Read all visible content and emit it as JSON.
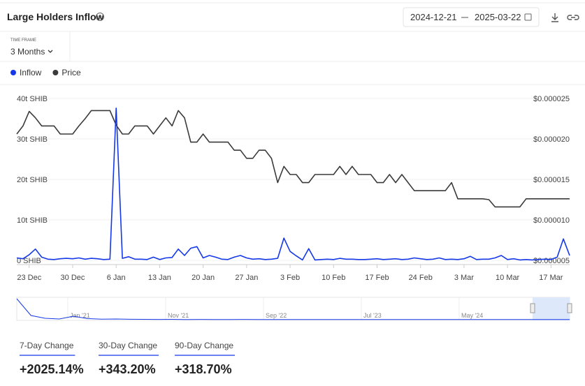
{
  "header": {
    "title": "Large Holders Inflow",
    "date_from": "2024-12-21",
    "date_to": "2025-03-22"
  },
  "time_frame": {
    "label": "TIME FRAME",
    "value": "3 Months"
  },
  "chart_data": {
    "type": "line",
    "x": [
      "21 Dec",
      "22 Dec",
      "23 Dec",
      "24 Dec",
      "25 Dec",
      "26 Dec",
      "27 Dec",
      "28 Dec",
      "29 Dec",
      "30 Dec",
      "31 Dec",
      "1 Jan",
      "2 Jan",
      "3 Jan",
      "4 Jan",
      "5 Jan",
      "6 Jan",
      "7 Jan",
      "8 Jan",
      "9 Jan",
      "10 Jan",
      "11 Jan",
      "12 Jan",
      "13 Jan",
      "14 Jan",
      "15 Jan",
      "16 Jan",
      "17 Jan",
      "18 Jan",
      "19 Jan",
      "20 Jan",
      "21 Jan",
      "22 Jan",
      "23 Jan",
      "24 Jan",
      "25 Jan",
      "26 Jan",
      "27 Jan",
      "28 Jan",
      "29 Jan",
      "30 Jan",
      "31 Jan",
      "1 Feb",
      "2 Feb",
      "3 Feb",
      "4 Feb",
      "5 Feb",
      "6 Feb",
      "7 Feb",
      "8 Feb",
      "9 Feb",
      "10 Feb",
      "11 Feb",
      "12 Feb",
      "13 Feb",
      "14 Feb",
      "15 Feb",
      "16 Feb",
      "17 Feb",
      "18 Feb",
      "19 Feb",
      "20 Feb",
      "21 Feb",
      "22 Feb",
      "23 Feb",
      "24 Feb",
      "25 Feb",
      "26 Feb",
      "27 Feb",
      "28 Feb",
      "1 Mar",
      "2 Mar",
      "3 Mar",
      "4 Mar",
      "5 Mar",
      "6 Mar",
      "7 Mar",
      "8 Mar",
      "9 Mar",
      "10 Mar",
      "11 Mar",
      "12 Mar",
      "13 Mar",
      "14 Mar",
      "15 Mar",
      "16 Mar",
      "17 Mar",
      "18 Mar",
      "19 Mar",
      "20 Mar"
    ],
    "xticks": [
      "23 Dec",
      "30 Dec",
      "6 Jan",
      "13 Jan",
      "20 Jan",
      "27 Jan",
      "3 Feb",
      "10 Feb",
      "17 Feb",
      "24 Feb",
      "3 Mar",
      "10 Mar",
      "17 Mar"
    ],
    "series": [
      {
        "name": "Inflow",
        "color": "#1538e8",
        "values": [
          0.6,
          0.4,
          1.4,
          2.8,
          0.8,
          0.3,
          0.2,
          0.4,
          0.5,
          0.4,
          0.6,
          0.3,
          0.5,
          0.4,
          0.2,
          0.3,
          37.6,
          0.5,
          0.9,
          0.3,
          0.3,
          0.2,
          0.8,
          0.2,
          0.6,
          0.7,
          2.8,
          1.2,
          3.0,
          3.4,
          0.6,
          1.2,
          0.8,
          0.3,
          0.2,
          0.8,
          1.2,
          0.6,
          0.3,
          0.4,
          0.2,
          0.3,
          0.5,
          5.5,
          2.2,
          1.1,
          0.1,
          2.9,
          0.1,
          0.2,
          0.3,
          0.2,
          0.5,
          0.3,
          0.3,
          0.2,
          0.2,
          0.3,
          0.4,
          0.2,
          0.3,
          0.4,
          0.2,
          0.3,
          0.6,
          0.4,
          0.2,
          0.3,
          0.6,
          0.2,
          0.3,
          0.2,
          0.4,
          1.0,
          0.2,
          0.3,
          0.3,
          0.6,
          1.2,
          0.2,
          0.4,
          0.1,
          0.2,
          0.1,
          0.2,
          0.3,
          0.2,
          0.8,
          5.3,
          1.2
        ]
      },
      {
        "name": "Price",
        "color": "#3a3a3a",
        "axis": "y2",
        "values": [
          2.06e-05,
          2.16e-05,
          2.34e-05,
          2.26e-05,
          2.16e-05,
          2.16e-05,
          2.16e-05,
          2.06e-05,
          2.06e-05,
          2.06e-05,
          2.16e-05,
          2.25e-05,
          2.35e-05,
          2.35e-05,
          2.35e-05,
          2.35e-05,
          2.17e-05,
          2.06e-05,
          2.06e-05,
          2.16e-05,
          2.16e-05,
          2.16e-05,
          2.06e-05,
          2.16e-05,
          2.26e-05,
          2.16e-05,
          2.35e-05,
          2.26e-05,
          1.96e-05,
          1.96e-05,
          2.06e-05,
          1.96e-05,
          1.96e-05,
          1.96e-05,
          1.96e-05,
          1.86e-05,
          1.86e-05,
          1.76e-05,
          1.76e-05,
          1.86e-05,
          1.86e-05,
          1.76e-05,
          1.46e-05,
          1.66e-05,
          1.56e-05,
          1.56e-05,
          1.46e-05,
          1.46e-05,
          1.56e-05,
          1.56e-05,
          1.56e-05,
          1.56e-05,
          1.66e-05,
          1.56e-05,
          1.66e-05,
          1.56e-05,
          1.56e-05,
          1.56e-05,
          1.46e-05,
          1.46e-05,
          1.56e-05,
          1.46e-05,
          1.56e-05,
          1.46e-05,
          1.36e-05,
          1.36e-05,
          1.36e-05,
          1.36e-05,
          1.36e-05,
          1.36e-05,
          1.46e-05,
          1.26e-05,
          1.26e-05,
          1.26e-05,
          1.26e-05,
          1.26e-05,
          1.25e-05,
          1.16e-05,
          1.16e-05,
          1.16e-05,
          1.16e-05,
          1.16e-05,
          1.26e-05,
          1.26e-05,
          1.26e-05,
          1.26e-05,
          1.26e-05,
          1.26e-05,
          1.26e-05,
          1.26e-05
        ]
      }
    ],
    "ylim": [
      0,
      40
    ],
    "yticks": [
      {
        "value": 0,
        "label": "0 SHIB"
      },
      {
        "value": 10,
        "label": "10t SHIB"
      },
      {
        "value": 20,
        "label": "20t SHIB"
      },
      {
        "value": 30,
        "label": "30t SHIB"
      },
      {
        "value": 40,
        "label": "40t SHIB"
      }
    ],
    "y2lim": [
      5e-06,
      2.5e-05
    ],
    "y2ticks": [
      {
        "value": 5e-06,
        "label": "$0.000005"
      },
      {
        "value": 1e-05,
        "label": "$0.000010"
      },
      {
        "value": 1.5e-05,
        "label": "$0.000015"
      },
      {
        "value": 2e-05,
        "label": "$0.000020"
      },
      {
        "value": 2.5e-05,
        "label": "$0.000025"
      }
    ],
    "grid": true,
    "legend": "top-left"
  },
  "navigator": {
    "type": "line",
    "labels": [
      "Jan '21",
      "Nov '21",
      "Sep '22",
      "Jul '23",
      "May '24"
    ],
    "color": "#1538e8",
    "ylim": [
      0,
      30
    ],
    "values": [
      30,
      6,
      2,
      1,
      5,
      1.5,
      0.8,
      1,
      0.6,
      0.5,
      0.4,
      0.5,
      0.3,
      0.4,
      0.3,
      0.3,
      0.4,
      0.3,
      0.2,
      0.3,
      0.3,
      0.2,
      0.3,
      0.2,
      0.3,
      0.2,
      0.2,
      0.3,
      0.2,
      0.2,
      0.3,
      0.2,
      0.2,
      0.2,
      0.3,
      0.2,
      0.2,
      0.3,
      0.2,
      0.3
    ]
  },
  "stats": [
    {
      "label": "7-Day Change",
      "value": "+2025.14%"
    },
    {
      "label": "30-Day Change",
      "value": "+343.20%"
    },
    {
      "label": "90-Day Change",
      "value": "+318.70%"
    }
  ]
}
